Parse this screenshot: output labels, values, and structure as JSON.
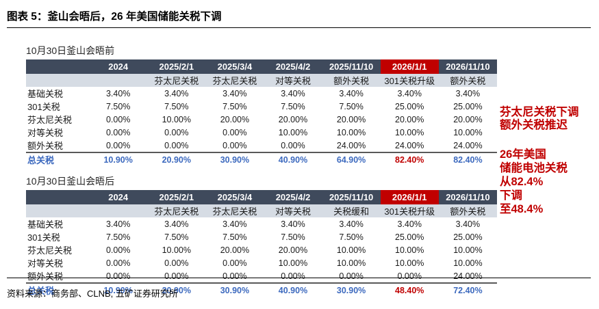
{
  "figure": {
    "title": "图表 5：釜山会晤后，26 年美国储能关税下调"
  },
  "colors": {
    "header_bg": "#3F4A5C",
    "header_highlight_bg": "#C00000",
    "subheader_bg": "#D6DCE4",
    "total_blue": "#3C69BE",
    "total_red": "#C00000",
    "annotation_red": "#C00000"
  },
  "tables": [
    {
      "label": "10月30日釜山会晤前",
      "columns": [
        "",
        "2024",
        "2025/2/1",
        "2025/3/4",
        "2025/4/2",
        "2025/11/10",
        "2026/1/1",
        "2026/11/10"
      ],
      "highlight_column": 6,
      "subheaders": [
        "",
        "",
        "芬太尼关税",
        "芬太尼关税",
        "对等关税",
        "额外关税",
        "301关税升级",
        "额外关税"
      ],
      "rows": [
        {
          "label": "基础关税",
          "values": [
            "3.40%",
            "3.40%",
            "3.40%",
            "3.40%",
            "3.40%",
            "3.40%",
            "3.40%"
          ]
        },
        {
          "label": "301关税",
          "values": [
            "7.50%",
            "7.50%",
            "7.50%",
            "7.50%",
            "7.50%",
            "25.00%",
            "25.00%"
          ]
        },
        {
          "label": "芬太尼关税",
          "values": [
            "0.00%",
            "10.00%",
            "20.00%",
            "20.00%",
            "20.00%",
            "20.00%",
            "20.00%"
          ]
        },
        {
          "label": "对等关税",
          "values": [
            "0.00%",
            "0.00%",
            "0.00%",
            "10.00%",
            "10.00%",
            "10.00%",
            "10.00%"
          ]
        },
        {
          "label": "额外关税",
          "values": [
            "0.00%",
            "0.00%",
            "0.00%",
            "0.00%",
            "24.00%",
            "24.00%",
            "24.00%"
          ]
        }
      ],
      "total": {
        "label": "总关税",
        "values": [
          "10.90%",
          "20.90%",
          "30.90%",
          "40.90%",
          "64.90%",
          "82.40%",
          "82.40%"
        ],
        "red_index": 5
      }
    },
    {
      "label": "10月30日釜山会晤后",
      "columns": [
        "",
        "2024",
        "2025/2/1",
        "2025/3/4",
        "2025/4/2",
        "2025/11/10",
        "2026/1/1",
        "2026/11/10"
      ],
      "highlight_column": 6,
      "subheaders": [
        "",
        "",
        "芬太尼关税",
        "芬太尼关税",
        "对等关税",
        "关税缓和",
        "301关税升级",
        "额外关税"
      ],
      "rows": [
        {
          "label": "基础关税",
          "values": [
            "3.40%",
            "3.40%",
            "3.40%",
            "3.40%",
            "3.40%",
            "3.40%",
            "3.40%"
          ]
        },
        {
          "label": "301关税",
          "values": [
            "7.50%",
            "7.50%",
            "7.50%",
            "7.50%",
            "7.50%",
            "25.00%",
            "25.00%"
          ]
        },
        {
          "label": "芬太尼关税",
          "values": [
            "0.00%",
            "10.00%",
            "20.00%",
            "20.00%",
            "10.00%",
            "10.00%",
            "10.00%"
          ]
        },
        {
          "label": "对等关税",
          "values": [
            "0.00%",
            "0.00%",
            "0.00%",
            "10.00%",
            "10.00%",
            "10.00%",
            "10.00%"
          ]
        },
        {
          "label": "额外关税",
          "values": [
            "0.00%",
            "0.00%",
            "0.00%",
            "0.00%",
            "0.00%",
            "0.00%",
            "24.00%"
          ]
        }
      ],
      "total": {
        "label": "总关税",
        "values": [
          "10.90%",
          "20.90%",
          "30.90%",
          "40.90%",
          "30.90%",
          "48.40%",
          "72.40%"
        ],
        "red_index": 5
      }
    }
  ],
  "annotations": [
    {
      "lines": [
        "芬太尼关税下调",
        "额外关税推迟"
      ]
    },
    {
      "lines": [
        "26年美国",
        "储能电池关税",
        "从82.4%",
        "下调",
        "至48.4%"
      ]
    }
  ],
  "source": "资料来源：商务部、CLNB, 五矿证券研究所"
}
